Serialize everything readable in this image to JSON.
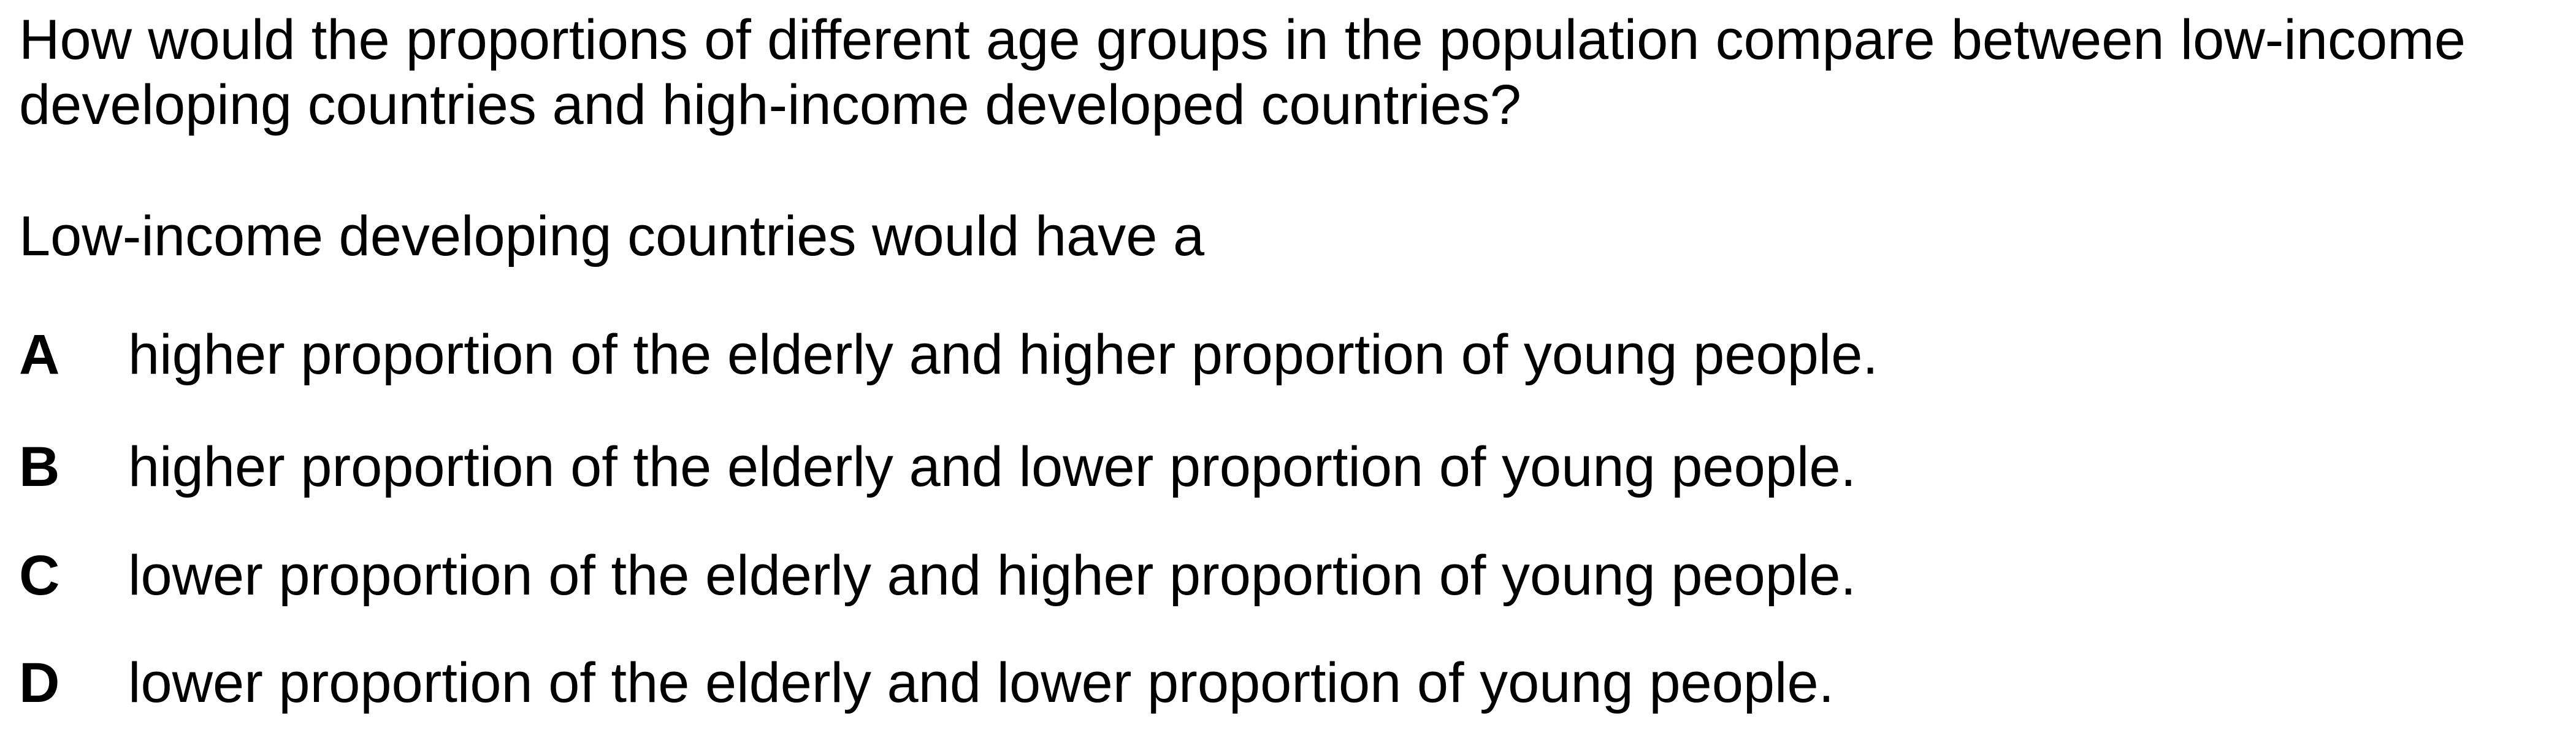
{
  "question": {
    "text": "How would the proportions of different age groups in the population compare between low-income developing countries and high-income developed countries?"
  },
  "stem": {
    "text": "Low-income developing countries would have a"
  },
  "options": [
    {
      "letter": "A",
      "text": "higher proportion of the elderly and higher proportion of young people."
    },
    {
      "letter": "B",
      "text": "higher proportion of the elderly and lower proportion of young people."
    },
    {
      "letter": "C",
      "text": "lower proportion of the elderly and higher proportion of young people."
    },
    {
      "letter": "D",
      "text": "lower proportion of the elderly and lower proportion of young people."
    }
  ]
}
